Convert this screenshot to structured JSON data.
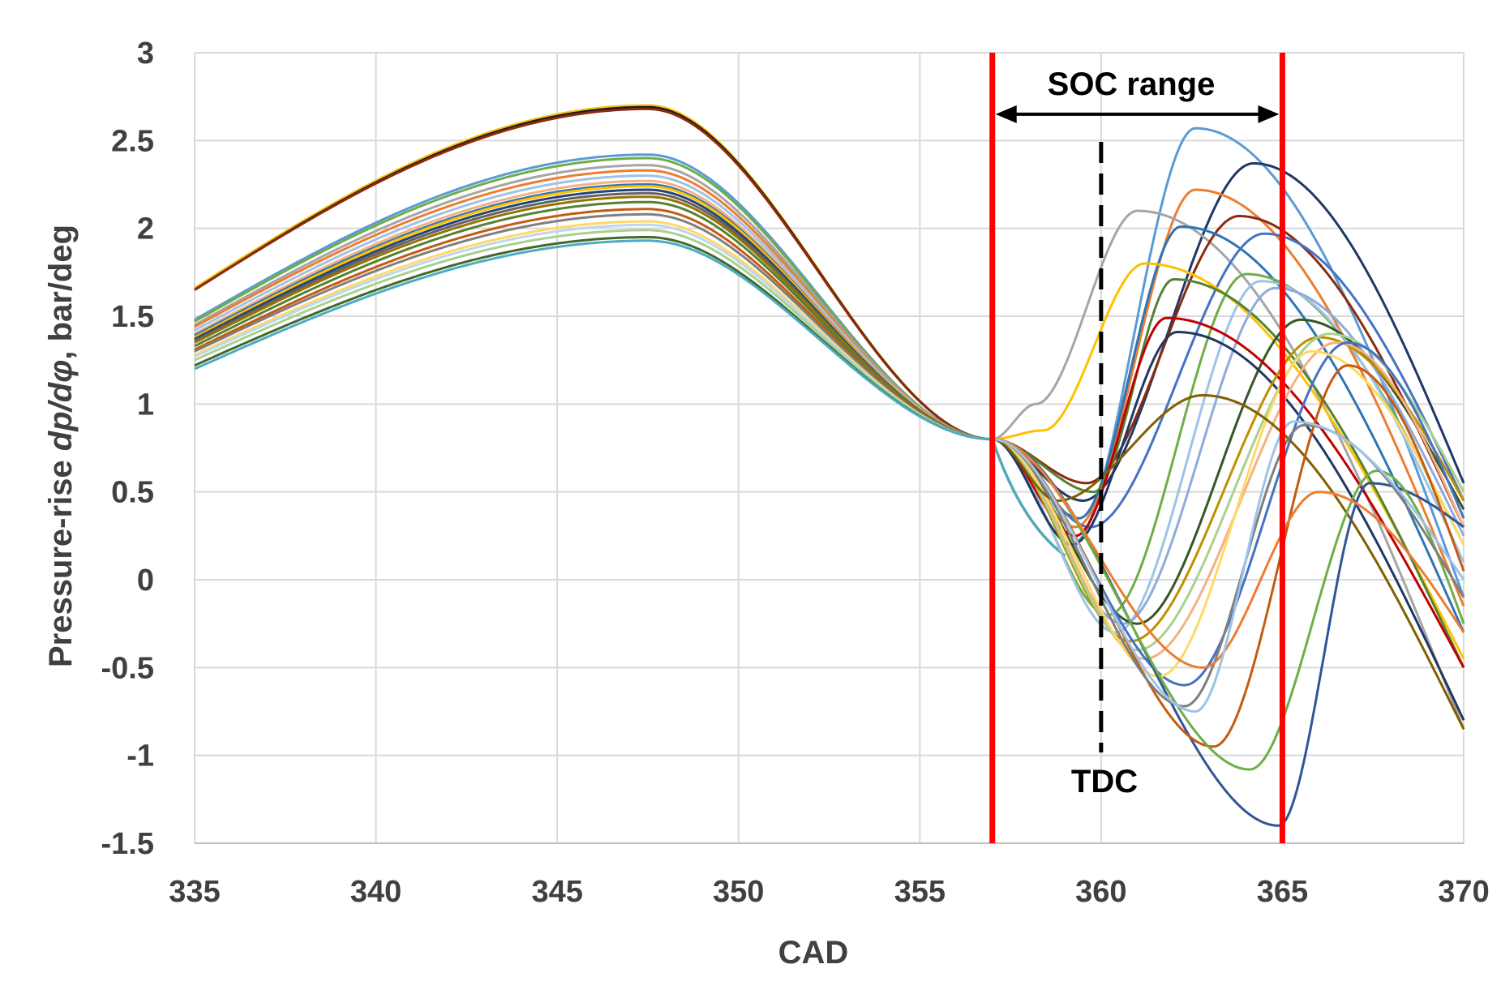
{
  "chart_data": {
    "type": "line",
    "title": "",
    "xlabel": "CAD",
    "ylabel_prefix": "Pressure-rise ",
    "ylabel_math": "dp/dφ",
    "ylabel_suffix": ", bar/deg",
    "xlim": [
      335,
      370
    ],
    "ylim": [
      -1.5,
      3
    ],
    "x_ticks": [
      335,
      340,
      345,
      350,
      355,
      360,
      365,
      370
    ],
    "y_ticks": [
      -1.5,
      -1,
      -0.5,
      0,
      0.5,
      1,
      1.5,
      2,
      2.5,
      3
    ],
    "x_tick_labels": [
      "335",
      "340",
      "345",
      "350",
      "355",
      "360",
      "365",
      "370"
    ],
    "y_tick_labels": [
      "-1.5",
      "-1",
      "-0.5",
      "0",
      "0.5",
      "1",
      "1.5",
      "2",
      "2.5",
      "3"
    ],
    "grid": true,
    "legend": "none",
    "annotations": {
      "soc_range_label": "SOC range",
      "soc_start": 357,
      "soc_end": 365,
      "soc_arrow_y": 2.65,
      "tdc_label": "TDC",
      "tdc_x": 360
    },
    "compression_group": [
      {
        "offset": 1.66,
        "peak": 2.7,
        "color": "#f4c20d"
      },
      {
        "offset": 1.65,
        "peak": 2.69,
        "color": "#1a1a1a"
      },
      {
        "offset": 1.65,
        "peak": 2.68,
        "color": "#8b2b0e"
      },
      {
        "offset": 1.48,
        "peak": 2.42,
        "color": "#5b9bd5"
      },
      {
        "offset": 1.47,
        "peak": 2.4,
        "color": "#70ad47"
      },
      {
        "offset": 1.45,
        "peak": 2.36,
        "color": "#a5a5a5"
      },
      {
        "offset": 1.44,
        "peak": 2.33,
        "color": "#ed7d31"
      },
      {
        "offset": 1.42,
        "peak": 2.3,
        "color": "#9dc3e6"
      },
      {
        "offset": 1.4,
        "peak": 2.27,
        "color": "#f4b183"
      },
      {
        "offset": 1.39,
        "peak": 2.25,
        "color": "#2e75b6"
      },
      {
        "offset": 1.38,
        "peak": 2.24,
        "color": "#ffc000"
      },
      {
        "offset": 1.37,
        "peak": 2.22,
        "color": "#264478"
      },
      {
        "offset": 1.36,
        "peak": 2.2,
        "color": "#636363"
      },
      {
        "offset": 1.35,
        "peak": 2.18,
        "color": "#997300"
      },
      {
        "offset": 1.33,
        "peak": 2.15,
        "color": "#548235"
      },
      {
        "offset": 1.31,
        "peak": 2.11,
        "color": "#c55a11"
      },
      {
        "offset": 1.3,
        "peak": 2.08,
        "color": "#7f7f7f"
      },
      {
        "offset": 1.28,
        "peak": 2.04,
        "color": "#ffd966"
      },
      {
        "offset": 1.27,
        "peak": 2.02,
        "color": "#bdd7ee"
      },
      {
        "offset": 1.25,
        "peak": 1.99,
        "color": "#a9d18e"
      },
      {
        "offset": 1.22,
        "peak": 1.95,
        "color": "#43682b"
      },
      {
        "offset": 1.2,
        "peak": 1.93,
        "color": "#4bacc6"
      }
    ],
    "combustion_series": [
      {
        "color": "#5b9bd5",
        "min_x": 359.2,
        "min_y": 0.2,
        "peak_x": 362.6,
        "peak_y": 2.57,
        "end_y": -0.1
      },
      {
        "color": "#1f3864",
        "min_x": 359.5,
        "min_y": 0.45,
        "peak_x": 364.2,
        "peak_y": 2.37,
        "end_y": 0.55
      },
      {
        "color": "#ed7d31",
        "min_x": 359.3,
        "min_y": 0.3,
        "peak_x": 362.6,
        "peak_y": 2.22,
        "end_y": -0.15
      },
      {
        "color": "#a5a5a5",
        "min_x": 358.2,
        "min_y": 1.0,
        "peak_x": 361.0,
        "peak_y": 2.1,
        "end_y": -0.85
      },
      {
        "color": "#8b2b0e",
        "min_x": 359.6,
        "min_y": 0.55,
        "peak_x": 363.8,
        "peak_y": 2.07,
        "end_y": 0.3
      },
      {
        "color": "#2e75b6",
        "min_x": 359.4,
        "min_y": 0.35,
        "peak_x": 362.2,
        "peak_y": 2.01,
        "end_y": -0.3
      },
      {
        "color": "#4472c4",
        "min_x": 359.7,
        "min_y": 0.3,
        "peak_x": 364.5,
        "peak_y": 1.97,
        "end_y": 0.45
      },
      {
        "color": "#ffc000",
        "min_x": 358.4,
        "min_y": 0.85,
        "peak_x": 361.2,
        "peak_y": 1.8,
        "end_y": -0.45
      },
      {
        "color": "#70ad47",
        "min_x": 360.2,
        "min_y": -0.2,
        "peak_x": 364.0,
        "peak_y": 1.74,
        "end_y": 0.2
      },
      {
        "color": "#9dc3e6",
        "min_x": 360.4,
        "min_y": -0.3,
        "peak_x": 364.4,
        "peak_y": 1.7,
        "end_y": 0.1
      },
      {
        "color": "#548235",
        "min_x": 359.8,
        "min_y": 0.5,
        "peak_x": 362.0,
        "peak_y": 1.71,
        "end_y": -0.5
      },
      {
        "color": "#8faadc",
        "min_x": 360.6,
        "min_y": -0.25,
        "peak_x": 364.8,
        "peak_y": 1.66,
        "end_y": 0.25
      },
      {
        "color": "#375623",
        "min_x": 361.0,
        "min_y": -0.25,
        "peak_x": 365.5,
        "peak_y": 1.48,
        "end_y": 0.4
      },
      {
        "color": "#c00000",
        "min_x": 359.3,
        "min_y": 0.25,
        "peak_x": 361.8,
        "peak_y": 1.49,
        "end_y": -0.5
      },
      {
        "color": "#203864",
        "min_x": 359.2,
        "min_y": 0.2,
        "peak_x": 362.1,
        "peak_y": 1.41,
        "end_y": -0.8
      },
      {
        "color": "#bf9000",
        "min_x": 360.8,
        "min_y": -0.35,
        "peak_x": 366.0,
        "peak_y": 1.38,
        "end_y": 0.45
      },
      {
        "color": "#f4b183",
        "min_x": 361.2,
        "min_y": -0.45,
        "peak_x": 366.5,
        "peak_y": 1.35,
        "end_y": 0.3
      },
      {
        "color": "#a9d18e",
        "min_x": 361.0,
        "min_y": -0.4,
        "peak_x": 366.3,
        "peak_y": 1.4,
        "end_y": 0.5
      },
      {
        "color": "#4472c4",
        "min_x": 362.3,
        "min_y": -0.6,
        "peak_x": 366.8,
        "peak_y": 1.35,
        "end_y": 0.35
      },
      {
        "color": "#ffd966",
        "min_x": 361.6,
        "min_y": -0.55,
        "peak_x": 365.8,
        "peak_y": 1.3,
        "end_y": 0.2
      },
      {
        "color": "#806000",
        "min_x": 358.8,
        "min_y": 0.45,
        "peak_x": 362.8,
        "peak_y": 1.05,
        "end_y": -0.85
      },
      {
        "color": "#2f5597",
        "min_x": 364.9,
        "min_y": -1.4,
        "peak_x": 367.4,
        "peak_y": 0.55,
        "end_y": 0.3
      },
      {
        "color": "#c55a11",
        "min_x": 363.1,
        "min_y": -0.95,
        "peak_x": 366.8,
        "peak_y": 1.22,
        "end_y": 0.05
      },
      {
        "color": "#70ad47",
        "min_x": 364.1,
        "min_y": -1.08,
        "peak_x": 367.6,
        "peak_y": 0.62,
        "end_y": -0.25
      },
      {
        "color": "#7f7f7f",
        "min_x": 362.3,
        "min_y": -0.72,
        "peak_x": 365.6,
        "peak_y": 0.88,
        "end_y": -0.1
      },
      {
        "color": "#ed7d31",
        "min_x": 362.8,
        "min_y": -0.5,
        "peak_x": 366.0,
        "peak_y": 0.5,
        "end_y": -0.3
      },
      {
        "color": "#9dc3e6",
        "min_x": 362.6,
        "min_y": -0.75,
        "peak_x": 365.3,
        "peak_y": 0.9,
        "end_y": 0.0
      }
    ]
  }
}
